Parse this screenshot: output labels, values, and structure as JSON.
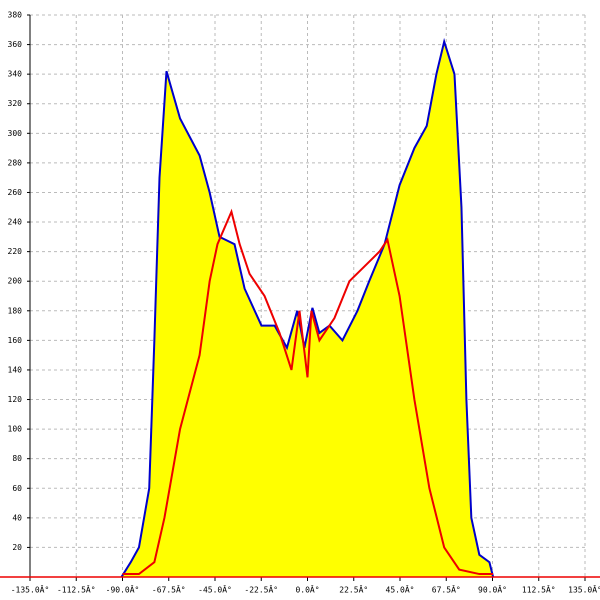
{
  "chart_data": {
    "type": "area-line",
    "xlim": [
      -135,
      135
    ],
    "xticks": [
      {
        "value": -135,
        "label": "-135.0Â°"
      },
      {
        "value": -112.5,
        "label": "-112.5Â°"
      },
      {
        "value": -90,
        "label": "-90.0Â°"
      },
      {
        "value": -67.5,
        "label": "-67.5Â°"
      },
      {
        "value": -45,
        "label": "-45.0Â°"
      },
      {
        "value": -22.5,
        "label": "-22.5Â°"
      },
      {
        "value": 0,
        "label": "0.0Â°"
      },
      {
        "value": 22.5,
        "label": "22.5Â°"
      },
      {
        "value": 45,
        "label": "45.0Â°"
      },
      {
        "value": 67.5,
        "label": "67.5Â°"
      },
      {
        "value": 90,
        "label": "90.0Â°"
      },
      {
        "value": 112.5,
        "label": "112.5Â°"
      },
      {
        "value": 135,
        "label": "135.0Â°"
      }
    ],
    "ylim": [
      0,
      380
    ],
    "yticks": [
      20,
      40,
      60,
      80,
      100,
      120,
      140,
      160,
      180,
      200,
      220,
      240,
      260,
      280,
      300,
      320,
      340,
      360,
      380
    ],
    "grid": true,
    "series": [
      {
        "color": "#0000cc",
        "fill": "#ffff00",
        "x": [
          -90.5,
          -86,
          -82,
          -77,
          -74.5,
          -72,
          -68.6,
          -62,
          -52.5,
          -47.6,
          -42.8,
          -35.5,
          -30.6,
          -22.4,
          -16,
          -10,
          -5,
          -1.5,
          2.4,
          5.8,
          10.7,
          17,
          24.3,
          30,
          37.5,
          44.8,
          52,
          58,
          62.7,
          66.5,
          71.5,
          74.9,
          77.3,
          79.7,
          83.6,
          88.5,
          90.3
        ],
        "values": [
          0,
          10,
          20,
          60,
          160,
          270,
          342,
          310,
          285,
          260,
          230,
          225,
          195,
          170,
          170,
          155,
          180,
          155,
          182,
          165,
          170,
          160,
          180,
          200,
          225,
          265,
          290,
          305,
          340,
          362,
          340,
          250,
          120,
          40,
          15,
          10,
          0
        ]
      },
      {
        "color": "#ee0000",
        "x": [
          -90,
          -82,
          -74.5,
          -69.6,
          -62,
          -52.5,
          -47.6,
          -43.8,
          -37,
          -33,
          -28.2,
          -20.9,
          -13.6,
          -7.8,
          -3.9,
          0,
          1.9,
          5.8,
          13.1,
          20.4,
          27.7,
          35,
          38.9,
          44.8,
          52,
          59.3,
          66.5,
          73.8,
          83.6,
          90.3
        ],
        "values": [
          2,
          2,
          10,
          40,
          100,
          150,
          200,
          225,
          247,
          225,
          205,
          190,
          165,
          140,
          180,
          135,
          180,
          160,
          175,
          200,
          210,
          220,
          228,
          190,
          120,
          60,
          20,
          5,
          2,
          2
        ]
      }
    ]
  }
}
